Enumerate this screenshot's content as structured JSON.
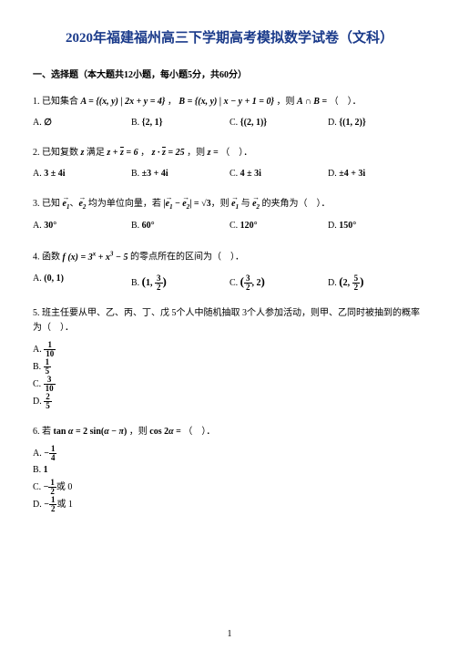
{
  "title": "2020年福建福州高三下学期高考模拟数学试卷（文科）",
  "section_header": "一、选择题（本大题共12小题，每小题5分，共60分）",
  "q1": {
    "num": "1.",
    "stem_a": "已知集合 ",
    "stem_b": "A = {(x, y) | 2x + y = 4}",
    "stem_c": "，",
    "stem_d": "B = {(x, y) | x − y + 1 = 0}",
    "stem_e": "，则 ",
    "stem_f": "A ∩ B = ",
    "stem_g": "（　）．",
    "A_label": "A.",
    "A_val": "∅",
    "B_label": "B.",
    "B_val": "{2, 1}",
    "C_label": "C.",
    "C_val": "{(2, 1)}",
    "D_label": "D.",
    "D_val": "{(1, 2)}"
  },
  "q2": {
    "num": "2.",
    "stem_a": "已知复数 ",
    "stem_b": "z",
    "stem_c": "满足 ",
    "stem_d": "z + z̄ = 6",
    "stem_e": "，",
    "stem_f": "z · z̄ = 25",
    "stem_g": "，则 ",
    "stem_h": "z = ",
    "stem_i": "（　）．",
    "A_label": "A.",
    "A_val": "3 ± 4i",
    "B_label": "B.",
    "B_val": "±3 + 4i",
    "C_label": "C.",
    "C_val": "4 ± 3i",
    "D_label": "D.",
    "D_val": "±4 + 3i"
  },
  "q3": {
    "num": "3.",
    "stem": "已知 e₁、e₂ 均为单位向量，若 |e₁ − e₂| = √3，则 e₁ 与 e₂ 的夹角为（　）．",
    "A_label": "A.",
    "A_val": "30°",
    "B_label": "B.",
    "B_val": "60°",
    "C_label": "C.",
    "C_val": "120°",
    "D_label": "D.",
    "D_val": "150°"
  },
  "q4": {
    "num": "4.",
    "stem_a": "函数 ",
    "stem_b": "f(x) = 3ˣ + x³ − 5",
    "stem_c": "的零点所在的区间为（　）．",
    "A_label": "A.",
    "A_val": "(0, 1)",
    "B_label": "B.",
    "B_l": "(1,",
    "B_num": "3",
    "B_den": "2",
    "B_r": ")",
    "C_label": "C.",
    "C_l": "(",
    "C_num1": "3",
    "C_den1": "2",
    "C_m": ", 2)",
    "D_label": "D.",
    "D_l": "(2,",
    "D_num": "5",
    "D_den": "2",
    "D_r": ")"
  },
  "q5": {
    "num": "5.",
    "stem": "班主任要从甲、乙、丙、丁、戊 5个人中随机抽取 3个人参加活动，则甲、乙同时被抽到的概率为（　）．",
    "A_label": "A.",
    "A_num": "1",
    "A_den": "10",
    "B_label": "B.",
    "B_num": "1",
    "B_den": "5",
    "C_label": "C.",
    "C_num": "3",
    "C_den": "10",
    "D_label": "D.",
    "D_num": "2",
    "D_den": "5"
  },
  "q6": {
    "num": "6.",
    "stem_a": "若 ",
    "stem_b": "tan α = 2 sin(α − π)",
    "stem_c": "，则 ",
    "stem_d": "cos 2α = ",
    "stem_e": "（　）．",
    "A_label": "A.",
    "A_pre": "−",
    "A_num": "1",
    "A_den": "4",
    "B_label": "B.",
    "B_val": "1",
    "C_label": "C.",
    "C_pre": "−",
    "C_num": "1",
    "C_den": "2",
    "C_post": "或 0",
    "D_label": "D.",
    "D_pre": "−",
    "D_num": "1",
    "D_den": "2",
    "D_post": "或 1"
  },
  "page_num": "1"
}
